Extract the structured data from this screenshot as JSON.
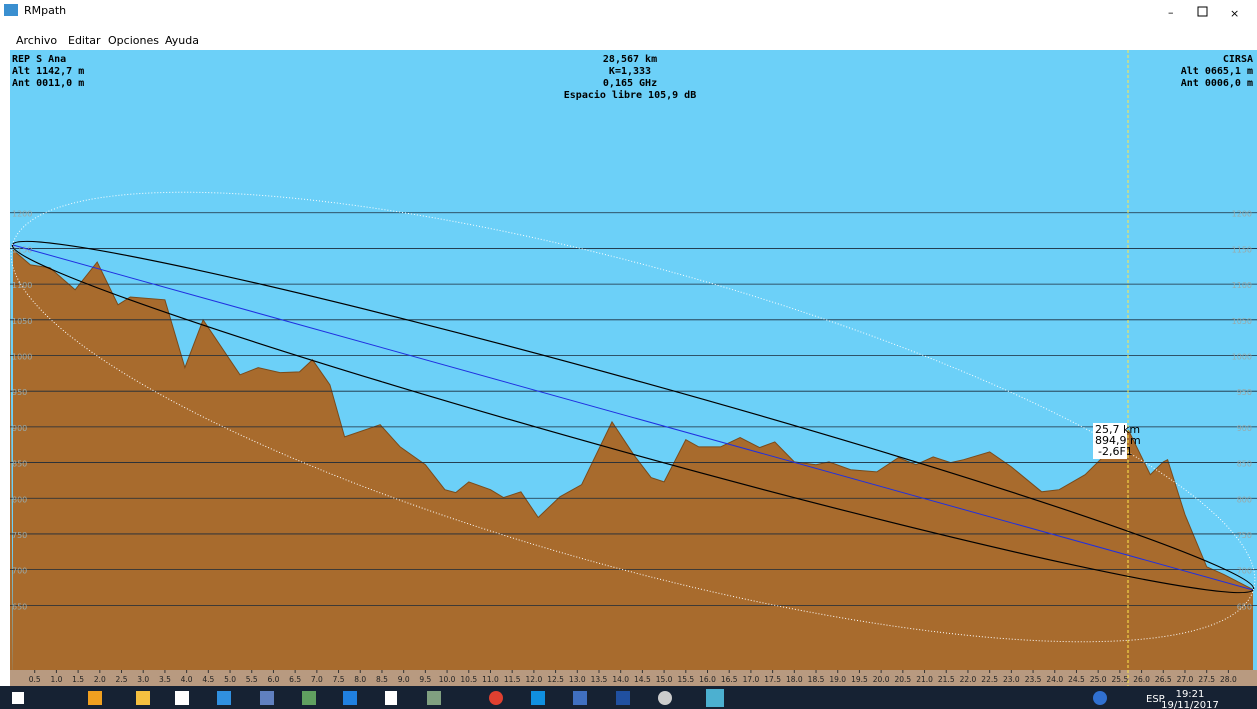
{
  "window": {
    "title": "RMpath",
    "menu": [
      "Archivo",
      "Editar",
      "Opciones",
      "Ayuda"
    ]
  },
  "header": {
    "left": [
      "REP S Ana",
      "Alt 1142,7 m",
      "Ant 0011,0 m"
    ],
    "center": [
      "28,567 km",
      "K=1,333",
      "0,165 GHz",
      "Espacio libre 105,9 dB"
    ],
    "right": [
      "CIRSA",
      "Alt 0665,1 m",
      "Ant 0006,0 m"
    ]
  },
  "cursor": [
    "25,7 km",
    "894,9 m",
    "-2,6F1"
  ],
  "profile": {
    "xlim": [
      0,
      28.567
    ],
    "ylim": [
      537,
      1428
    ],
    "yticks": [
      1200,
      1150,
      1100,
      1050,
      1000,
      950,
      900,
      850,
      800,
      750,
      700,
      650
    ],
    "xticks": [
      0.5,
      {
        "value": 1,
        "label": "1.0"
      },
      1.5,
      {
        "value": 2,
        "label": "2.0"
      },
      2.5,
      {
        "value": 3,
        "label": "3.0"
      },
      3.5,
      {
        "value": 4,
        "label": "4.0"
      },
      4.5,
      {
        "value": 5,
        "label": "5.0"
      },
      5.5,
      {
        "value": 6,
        "label": "6.0"
      },
      6.5,
      {
        "value": 7,
        "label": "7.0"
      },
      7.5,
      {
        "value": 8,
        "label": "8.0"
      },
      8.5,
      {
        "value": 9,
        "label": "9.0"
      },
      9.5,
      {
        "value": 10,
        "label": "10.0"
      },
      10.5,
      {
        "value": 11,
        "label": "11.0"
      },
      11.5,
      {
        "value": 12,
        "label": "12.0"
      },
      12.5,
      {
        "value": 13,
        "label": "13.0"
      },
      13.5,
      {
        "value": 14,
        "label": "14.0"
      },
      14.5,
      {
        "value": 15,
        "label": "15.0"
      },
      15.5,
      {
        "value": 16,
        "label": "16.0"
      },
      16.5,
      {
        "value": 17,
        "label": "17.0"
      },
      17.5,
      {
        "value": 18,
        "label": "18.0"
      },
      18.5,
      {
        "value": 19,
        "label": "19.0"
      },
      19.5,
      {
        "value": 20,
        "label": "20.0"
      },
      20.5,
      {
        "value": 21,
        "label": "21.0"
      },
      21.5,
      {
        "value": 22,
        "label": "22.0"
      },
      22.5,
      {
        "value": 23,
        "label": "23.0"
      },
      23.5,
      {
        "value": 24,
        "label": "24.0"
      },
      24.5,
      {
        "value": 25,
        "label": "25.0"
      },
      25.5,
      {
        "value": 26,
        "label": "26.0"
      },
      26.5,
      {
        "value": 27,
        "label": "27.0"
      },
      27.5,
      {
        "value": 28,
        "label": "28.0"
      }
    ],
    "distance_km": [
      0,
      0.4,
      0.85,
      1.43,
      1.94,
      2.42,
      2.7,
      3.5,
      3.96,
      4.38,
      5.23,
      5.65,
      6.15,
      6.6,
      6.9,
      7.3,
      7.64,
      8.46,
      8.92,
      9.5,
      9.95,
      10.2,
      10.5,
      11.0,
      11.3,
      11.7,
      12.1,
      12.6,
      13.1,
      13.8,
      14.3,
      14.7,
      15.0,
      15.5,
      15.8,
      16.3,
      16.75,
      17.2,
      17.55,
      18.0,
      18.5,
      18.8,
      19.3,
      19.9,
      20.4,
      20.8,
      21.2,
      21.6,
      21.9,
      22.5,
      23.0,
      23.7,
      24.1,
      24.7,
      25.05,
      25.7,
      26.2,
      26.5,
      26.6,
      27.0,
      27.5,
      27.9,
      28.567
    ],
    "elevation_m": [
      1148,
      1127,
      1123,
      1092,
      1131,
      1071,
      1082,
      1078,
      983,
      1050,
      973,
      983,
      976,
      977,
      994,
      959,
      886,
      903,
      872,
      847,
      812,
      808,
      823,
      812,
      801,
      809,
      773,
      802,
      819,
      907,
      861,
      829,
      823,
      882,
      872,
      872,
      885,
      871,
      879,
      851,
      847,
      851,
      840,
      837,
      857,
      847,
      858,
      850,
      854,
      865,
      844,
      809,
      812,
      833,
      854,
      895,
      833,
      851,
      854,
      777,
      704,
      693,
      672
    ]
  },
  "taskbar": {
    "language": "ESP",
    "time": "19:21",
    "date": "19/11/2017"
  }
}
